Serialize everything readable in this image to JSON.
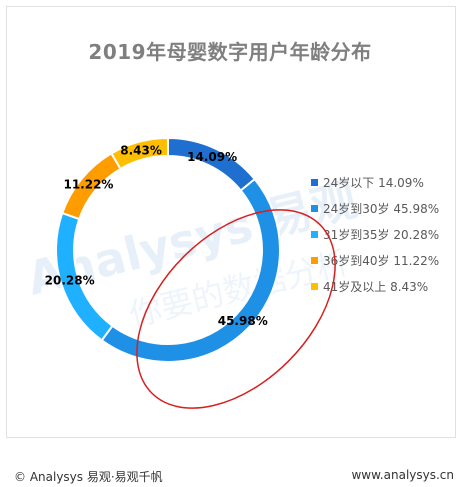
{
  "chart_data": {
    "type": "pie",
    "title": "2019年母婴数字用户年龄分布",
    "categories": [
      "24岁以下",
      "24岁到30岁",
      "31岁到35岁",
      "36岁到40岁",
      "41岁及以上"
    ],
    "values": [
      14.09,
      45.98,
      20.28,
      11.22,
      8.43
    ],
    "data_labels": [
      "14.09%",
      "45.98%",
      "20.28%",
      "11.22%",
      "8.43%"
    ],
    "legend_labels": [
      "24岁以下 14.09%",
      "24岁到30岁 45.98%",
      "31岁到35岁 20.28%",
      "36岁到40岁 11.22%",
      "41岁及以上 8.43%"
    ],
    "colors": [
      "#1f6fd0",
      "#1e90e6",
      "#1fb1ff",
      "#ff9d00",
      "#ffbf00"
    ],
    "donut": true,
    "legend_position": "right"
  },
  "watermark": {
    "brand": "Analysys 易观",
    "slogan": "你要的数据分析"
  },
  "footer": {
    "left": "© Analysys 易观·易观千帆",
    "right": "www.analysys.cn"
  }
}
